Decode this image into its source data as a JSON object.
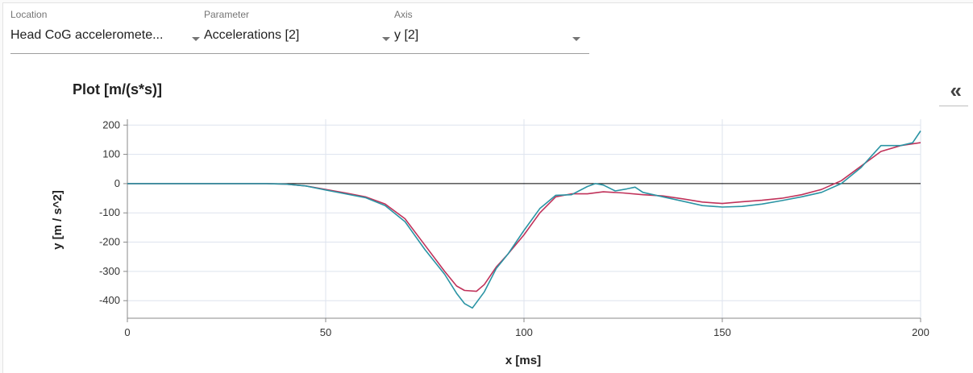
{
  "selectors": {
    "location": {
      "label": "Location",
      "value": "Head CoG acceleromete..."
    },
    "parameter": {
      "label": "Parameter",
      "value": "Accelerations [2]"
    },
    "axis": {
      "label": "Axis",
      "value": "y [2]"
    }
  },
  "collapse_icon": "chevrons-left-icon",
  "colors": {
    "series_red": "#c0325a",
    "series_teal": "#2a94a4",
    "grid": "#dde3ee",
    "zero_line": "#000000"
  },
  "chart_data": {
    "type": "line",
    "title": "Plot [m/(s*s)]",
    "xlabel": "x [ms]",
    "ylabel": "y [m / s^2]",
    "xlim": [
      0,
      200
    ],
    "ylim": [
      -460,
      220
    ],
    "xticks": [
      0,
      50,
      100,
      150,
      200
    ],
    "yticks": [
      200,
      100,
      0,
      -100,
      -200,
      -300,
      -400
    ],
    "grid": true,
    "series": [
      {
        "color": "#c0325a",
        "points": [
          [
            0,
            0
          ],
          [
            20,
            0
          ],
          [
            30,
            0
          ],
          [
            35,
            0
          ],
          [
            40,
            -2
          ],
          [
            45,
            -8
          ],
          [
            50,
            -20
          ],
          [
            55,
            -32
          ],
          [
            60,
            -45
          ],
          [
            65,
            -70
          ],
          [
            70,
            -120
          ],
          [
            75,
            -210
          ],
          [
            80,
            -300
          ],
          [
            83,
            -350
          ],
          [
            85,
            -365
          ],
          [
            88,
            -368
          ],
          [
            90,
            -345
          ],
          [
            93,
            -285
          ],
          [
            96,
            -240
          ],
          [
            100,
            -175
          ],
          [
            104,
            -100
          ],
          [
            108,
            -45
          ],
          [
            112,
            -35
          ],
          [
            116,
            -35
          ],
          [
            120,
            -28
          ],
          [
            125,
            -32
          ],
          [
            130,
            -38
          ],
          [
            135,
            -42
          ],
          [
            140,
            -52
          ],
          [
            145,
            -63
          ],
          [
            150,
            -68
          ],
          [
            155,
            -62
          ],
          [
            160,
            -57
          ],
          [
            165,
            -50
          ],
          [
            170,
            -38
          ],
          [
            175,
            -20
          ],
          [
            180,
            10
          ],
          [
            185,
            60
          ],
          [
            190,
            110
          ],
          [
            195,
            130
          ],
          [
            200,
            140
          ]
        ]
      },
      {
        "color": "#2a94a4",
        "points": [
          [
            0,
            0
          ],
          [
            20,
            0
          ],
          [
            30,
            0
          ],
          [
            35,
            0
          ],
          [
            40,
            -2
          ],
          [
            45,
            -8
          ],
          [
            50,
            -22
          ],
          [
            55,
            -35
          ],
          [
            60,
            -48
          ],
          [
            65,
            -75
          ],
          [
            70,
            -130
          ],
          [
            75,
            -225
          ],
          [
            80,
            -310
          ],
          [
            83,
            -375
          ],
          [
            85,
            -410
          ],
          [
            87,
            -425
          ],
          [
            90,
            -370
          ],
          [
            93,
            -290
          ],
          [
            96,
            -240
          ],
          [
            100,
            -160
          ],
          [
            104,
            -85
          ],
          [
            108,
            -40
          ],
          [
            112,
            -38
          ],
          [
            116,
            -10
          ],
          [
            118,
            0
          ],
          [
            120,
            -5
          ],
          [
            123,
            -25
          ],
          [
            126,
            -18
          ],
          [
            128,
            -12
          ],
          [
            130,
            -30
          ],
          [
            135,
            -45
          ],
          [
            140,
            -60
          ],
          [
            145,
            -75
          ],
          [
            150,
            -80
          ],
          [
            155,
            -78
          ],
          [
            160,
            -70
          ],
          [
            165,
            -58
          ],
          [
            170,
            -45
          ],
          [
            175,
            -30
          ],
          [
            180,
            0
          ],
          [
            185,
            55
          ],
          [
            190,
            130
          ],
          [
            195,
            130
          ],
          [
            198,
            140
          ],
          [
            200,
            180
          ]
        ]
      }
    ]
  }
}
